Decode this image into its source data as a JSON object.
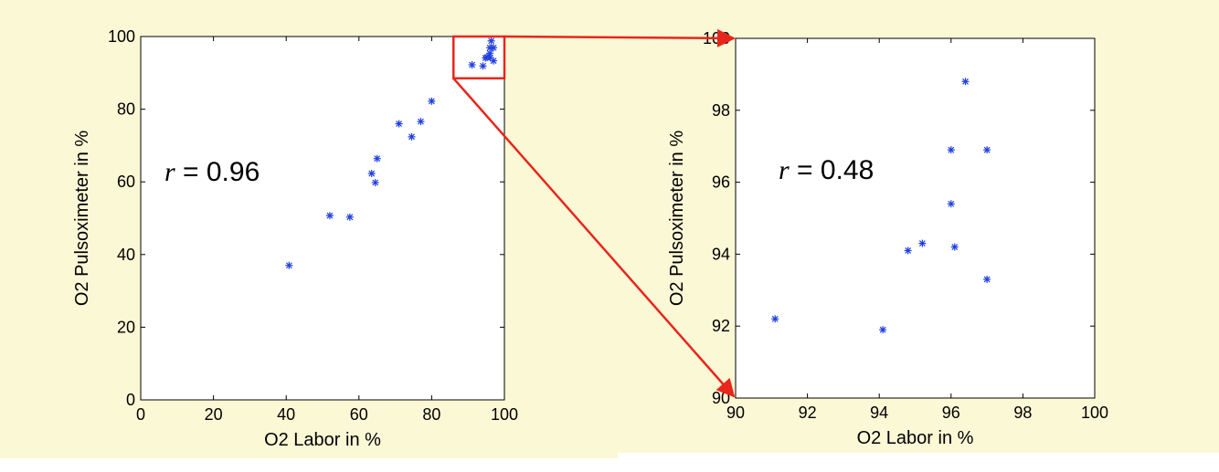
{
  "colors": {
    "panel_background": "#fbf8d6",
    "marker": "#1f3fe0",
    "zoom_box": "#e8261c",
    "axis": "#000000"
  },
  "chart_data": [
    {
      "type": "scatter",
      "title": "",
      "xlabel": "O2 Labor in %",
      "ylabel": "O2 Pulsoximeter in %",
      "xlim": [
        0,
        100
      ],
      "ylim": [
        0,
        100
      ],
      "xticks": [
        0,
        20,
        40,
        60,
        80,
        100
      ],
      "yticks": [
        0,
        20,
        40,
        60,
        80,
        100
      ],
      "grid": false,
      "marker": "asterisk",
      "annotation": {
        "var": "r",
        "text": " = 0.96"
      },
      "zoom_region": {
        "x": [
          86,
          100
        ],
        "y": [
          88.5,
          100
        ]
      },
      "points": [
        {
          "x": 40.8,
          "y": 37.0
        },
        {
          "x": 52.0,
          "y": 50.7
        },
        {
          "x": 57.5,
          "y": 50.3
        },
        {
          "x": 63.5,
          "y": 62.3
        },
        {
          "x": 64.5,
          "y": 59.8
        },
        {
          "x": 65.0,
          "y": 66.4
        },
        {
          "x": 71.0,
          "y": 76.0
        },
        {
          "x": 74.5,
          "y": 72.4
        },
        {
          "x": 77.0,
          "y": 76.6
        },
        {
          "x": 80.0,
          "y": 82.2
        },
        {
          "x": 91.1,
          "y": 92.2
        },
        {
          "x": 94.1,
          "y": 91.9
        },
        {
          "x": 94.8,
          "y": 94.1
        },
        {
          "x": 95.2,
          "y": 94.3
        },
        {
          "x": 96.0,
          "y": 96.9
        },
        {
          "x": 96.0,
          "y": 95.4
        },
        {
          "x": 96.1,
          "y": 94.2
        },
        {
          "x": 96.4,
          "y": 98.8
        },
        {
          "x": 97.0,
          "y": 96.9
        },
        {
          "x": 97.0,
          "y": 93.3
        }
      ]
    },
    {
      "type": "scatter",
      "title": "",
      "xlabel": "O2 Labor in %",
      "ylabel": "O2 Pulsoximeter in %",
      "xlim": [
        90,
        100
      ],
      "ylim": [
        90,
        100
      ],
      "xticks": [
        90,
        92,
        94,
        96,
        98,
        100
      ],
      "yticks": [
        90,
        92,
        94,
        96,
        98,
        100
      ],
      "grid": false,
      "marker": "asterisk",
      "annotation": {
        "var": "r",
        "text": " = 0.48"
      },
      "points": [
        {
          "x": 91.1,
          "y": 92.2
        },
        {
          "x": 94.1,
          "y": 91.9
        },
        {
          "x": 94.8,
          "y": 94.1
        },
        {
          "x": 95.2,
          "y": 94.3
        },
        {
          "x": 96.0,
          "y": 96.9
        },
        {
          "x": 96.0,
          "y": 95.4
        },
        {
          "x": 96.1,
          "y": 94.2
        },
        {
          "x": 96.4,
          "y": 98.8
        },
        {
          "x": 97.0,
          "y": 96.9
        },
        {
          "x": 97.0,
          "y": 93.3
        }
      ]
    }
  ]
}
